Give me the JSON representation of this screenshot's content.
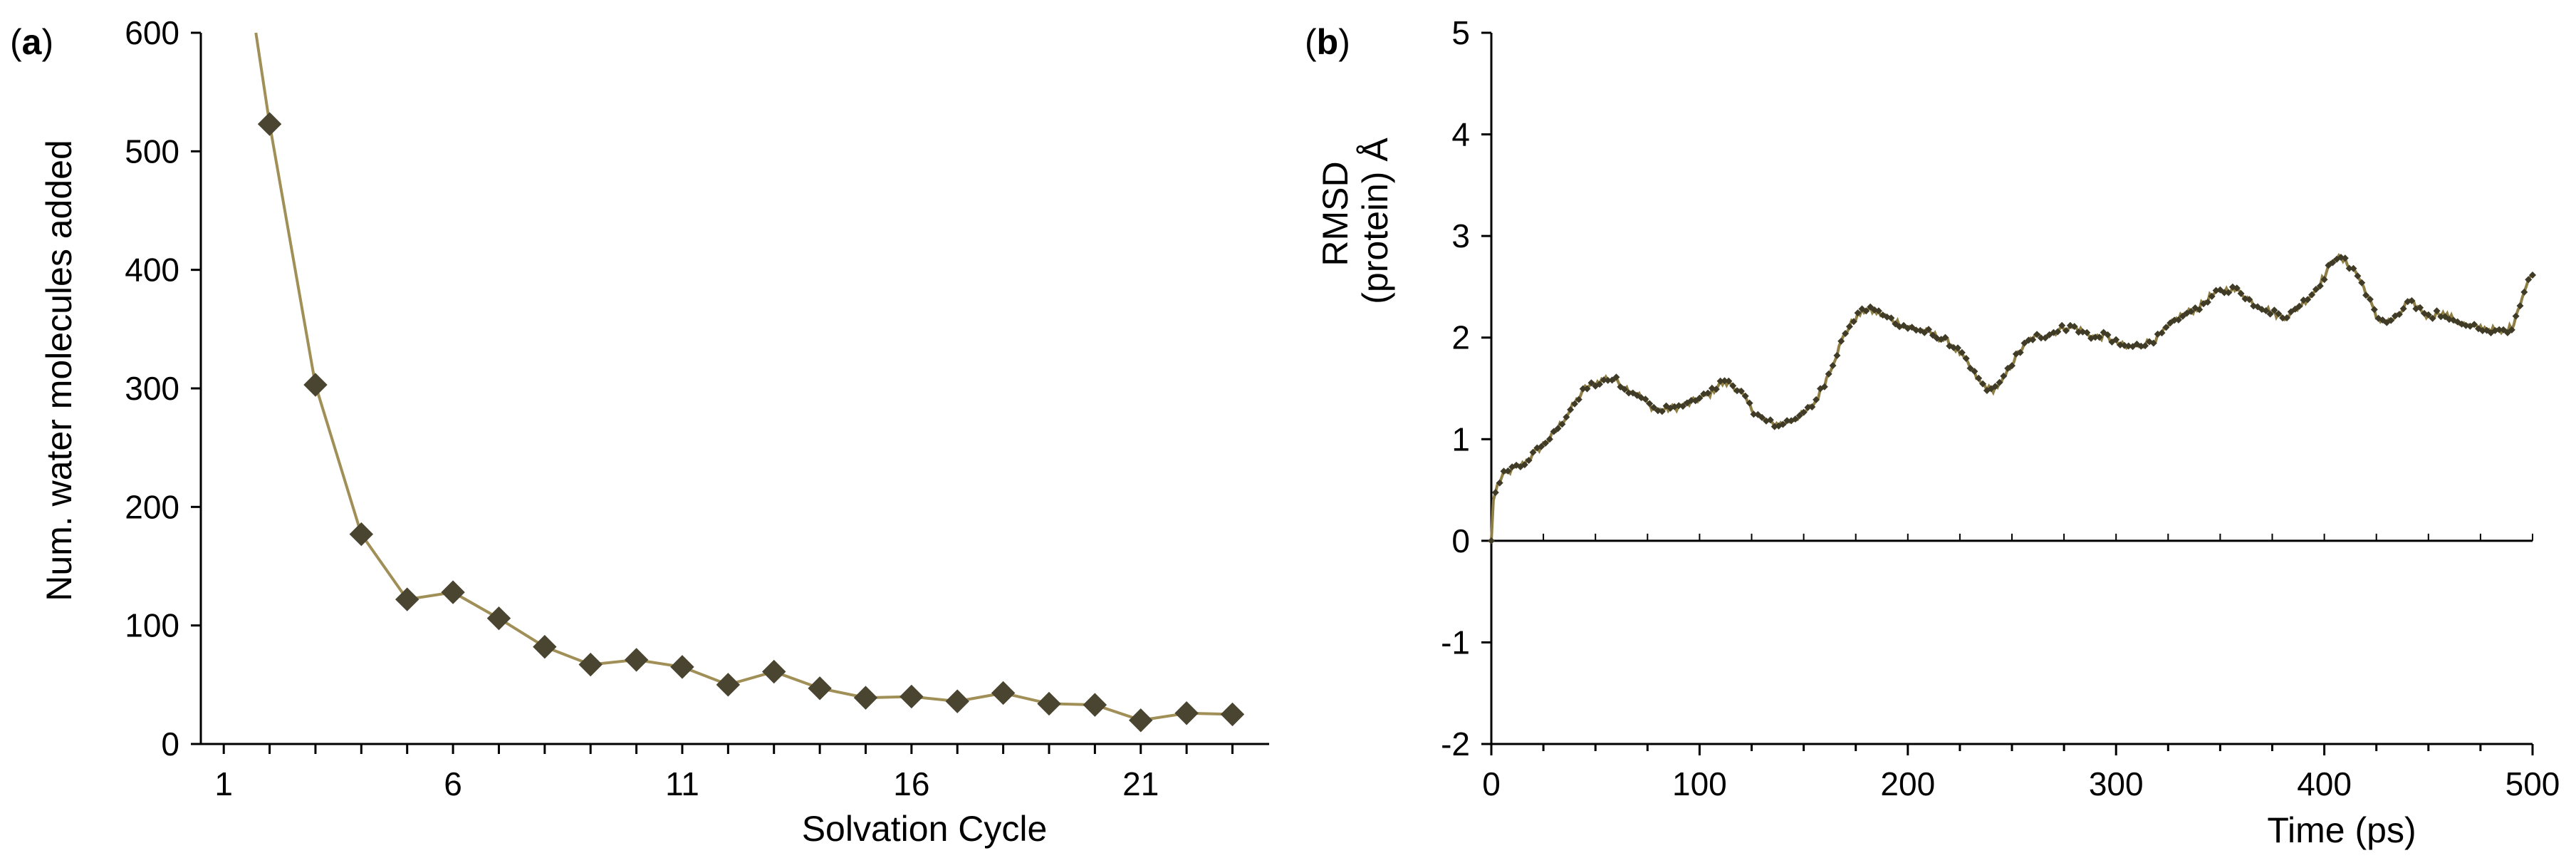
{
  "chart_data": [
    {
      "type": "line",
      "panel_label": "a",
      "title": "",
      "xlabel": "Solvation Cycle",
      "ylabel": "Num. water molecules added",
      "xlim": [
        0.5,
        23.8
      ],
      "ylim": [
        0,
        600
      ],
      "xticks": [
        1,
        6,
        11,
        16,
        21
      ],
      "yticks": [
        0,
        100,
        200,
        300,
        400,
        500,
        600
      ],
      "line_color": "#a08f57",
      "marker_color": "#4a4530",
      "marker": "diamond",
      "legend": "none",
      "grid": false,
      "x_extra": [
        1.7
      ],
      "y_extra": [
        600
      ],
      "series": [
        {
          "name": "water molecules added",
          "x": [
            2,
            3,
            4,
            5,
            6,
            7,
            8,
            9,
            10,
            11,
            12,
            13,
            14,
            15,
            16,
            17,
            18,
            19,
            20,
            21,
            22,
            23
          ],
          "y": [
            523,
            303,
            177,
            122,
            128,
            106,
            82,
            67,
            71,
            65,
            50,
            61,
            47,
            39,
            40,
            36,
            43,
            34,
            33,
            20,
            26,
            25
          ]
        }
      ]
    },
    {
      "type": "line",
      "panel_label": "b",
      "title": "",
      "xlabel": "Time (ps)",
      "ylabel_line1": "RMSD",
      "ylabel_line2": "(protein) Å",
      "xlim": [
        0,
        500
      ],
      "ylim": [
        -2,
        5
      ],
      "xticks": [
        0,
        100,
        200,
        300,
        400,
        500
      ],
      "yticks": [
        -2,
        -1,
        0,
        1,
        2,
        3,
        4,
        5
      ],
      "line_color": "#8f7f45",
      "marker_color": "#3f3b26",
      "marker": "diamond-small",
      "legend": "none",
      "grid": false,
      "keypoints": {
        "t": [
          0,
          1,
          3,
          6,
          10,
          15,
          20,
          25,
          30,
          35,
          40,
          45,
          50,
          55,
          60,
          65,
          70,
          75,
          80,
          85,
          90,
          95,
          100,
          105,
          110,
          115,
          120,
          125,
          130,
          135,
          140,
          145,
          150,
          155,
          160,
          165,
          170,
          175,
          180,
          185,
          190,
          195,
          200,
          205,
          210,
          215,
          220,
          225,
          230,
          235,
          240,
          245,
          250,
          255,
          260,
          265,
          270,
          275,
          280,
          285,
          290,
          295,
          300,
          305,
          310,
          315,
          320,
          325,
          330,
          335,
          340,
          345,
          350,
          355,
          360,
          365,
          370,
          375,
          380,
          385,
          390,
          395,
          400,
          405,
          410,
          415,
          420,
          425,
          430,
          435,
          440,
          445,
          450,
          455,
          460,
          465,
          470,
          475,
          480,
          485,
          490,
          495,
          500
        ],
        "rmsd": [
          0.0,
          0.4,
          0.55,
          0.65,
          0.7,
          0.75,
          0.85,
          0.95,
          1.05,
          1.2,
          1.35,
          1.5,
          1.55,
          1.6,
          1.58,
          1.5,
          1.45,
          1.35,
          1.28,
          1.3,
          1.32,
          1.35,
          1.4,
          1.45,
          1.55,
          1.55,
          1.45,
          1.3,
          1.2,
          1.15,
          1.15,
          1.2,
          1.25,
          1.35,
          1.55,
          1.8,
          2.05,
          2.2,
          2.28,
          2.25,
          2.2,
          2.15,
          2.1,
          2.08,
          2.05,
          2.0,
          1.95,
          1.85,
          1.7,
          1.55,
          1.48,
          1.55,
          1.75,
          1.9,
          2.0,
          2.02,
          2.05,
          2.1,
          2.1,
          2.05,
          2.0,
          2.02,
          1.95,
          1.9,
          1.92,
          1.95,
          2.0,
          2.1,
          2.2,
          2.25,
          2.3,
          2.4,
          2.45,
          2.48,
          2.45,
          2.35,
          2.3,
          2.25,
          2.2,
          2.25,
          2.35,
          2.45,
          2.6,
          2.8,
          2.75,
          2.65,
          2.45,
          2.2,
          2.15,
          2.2,
          2.35,
          2.3,
          2.2,
          2.25,
          2.2,
          2.15,
          2.1,
          2.1,
          2.08,
          2.05,
          2.1,
          2.4,
          2.65
        ]
      }
    }
  ]
}
